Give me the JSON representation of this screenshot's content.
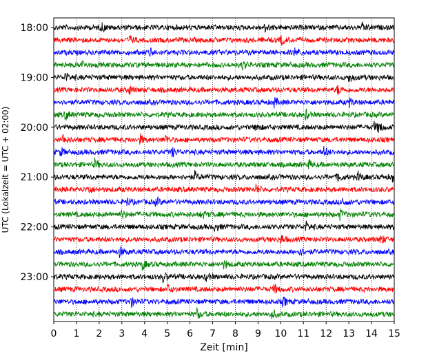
{
  "chart_data": {
    "type": "line",
    "title": "",
    "xlabel": "Zeit  [min]",
    "ylabel": "UTC (Lokalzeit = UTC + 02:00)",
    "xlim": [
      0,
      15
    ],
    "x_ticks": [
      0,
      1,
      2,
      3,
      4,
      5,
      6,
      7,
      8,
      9,
      10,
      11,
      12,
      13,
      14,
      15
    ],
    "y_tick_labels": [
      "18:00",
      "19:00",
      "20:00",
      "21:00",
      "22:00",
      "23:00"
    ],
    "trace_interval_minutes": 15,
    "start_time": "18:00",
    "trace_count": 24,
    "trace_colors": [
      "#000000",
      "#ff0000",
      "#0000ff",
      "#008000"
    ],
    "grid": "vertical dotted at each minute",
    "series": [
      {
        "start": "18:00",
        "color": "#000000",
        "events_min": [
          2.1,
          9.3,
          13.6
        ]
      },
      {
        "start": "18:15",
        "color": "#ff0000",
        "events_min": [
          3.3,
          10.0
        ]
      },
      {
        "start": "18:30",
        "color": "#0000ff",
        "events_min": [
          4.2,
          10.6
        ]
      },
      {
        "start": "18:45",
        "color": "#008000",
        "events_min": [
          1.2,
          8.3
        ]
      },
      {
        "start": "19:00",
        "color": "#000000",
        "events_min": [
          0.5,
          13.0
        ]
      },
      {
        "start": "19:15",
        "color": "#ff0000",
        "events_min": [
          3.3,
          12.5
        ]
      },
      {
        "start": "19:30",
        "color": "#0000ff",
        "events_min": [
          9.7,
          13.0
        ]
      },
      {
        "start": "19:45",
        "color": "#008000",
        "events_min": [
          0.5,
          11.1
        ]
      },
      {
        "start": "20:00",
        "color": "#000000",
        "events_min": [
          8.9,
          14.1,
          14.3
        ]
      },
      {
        "start": "20:15",
        "color": "#ff0000",
        "events_min": [
          0.4,
          3.8,
          4.9
        ]
      },
      {
        "start": "20:30",
        "color": "#0000ff",
        "events_min": [
          0.3,
          5.2,
          11.9
        ]
      },
      {
        "start": "20:45",
        "color": "#008000",
        "events_min": [
          1.8,
          11.2
        ]
      },
      {
        "start": "21:00",
        "color": "#000000",
        "events_min": [
          6.2,
          12.5,
          13.4,
          14.9
        ]
      },
      {
        "start": "21:15",
        "color": "#ff0000",
        "events_min": [
          1.5,
          8.9
        ]
      },
      {
        "start": "21:30",
        "color": "#0000ff",
        "events_min": [
          3.2,
          4.5,
          12.7
        ]
      },
      {
        "start": "21:45",
        "color": "#008000",
        "events_min": [
          3.0,
          6.5,
          12.6
        ]
      },
      {
        "start": "22:00",
        "color": "#000000",
        "events_min": [
          7.1,
          11.1
        ]
      },
      {
        "start": "22:15",
        "color": "#ff0000",
        "events_min": [
          10.0,
          14.4
        ]
      },
      {
        "start": "22:30",
        "color": "#0000ff",
        "events_min": [
          2.9,
          10.8
        ]
      },
      {
        "start": "22:45",
        "color": "#008000",
        "events_min": [
          3.9,
          7.5
        ]
      },
      {
        "start": "23:00",
        "color": "#000000",
        "events_min": [
          4.8,
          6.7
        ]
      },
      {
        "start": "23:15",
        "color": "#ff0000",
        "events_min": [
          5.0,
          9.7
        ]
      },
      {
        "start": "23:30",
        "color": "#0000ff",
        "events_min": [
          3.4,
          10.1
        ]
      },
      {
        "start": "23:45",
        "color": "#008000",
        "events_min": [
          6.3,
          9.6
        ]
      }
    ]
  }
}
